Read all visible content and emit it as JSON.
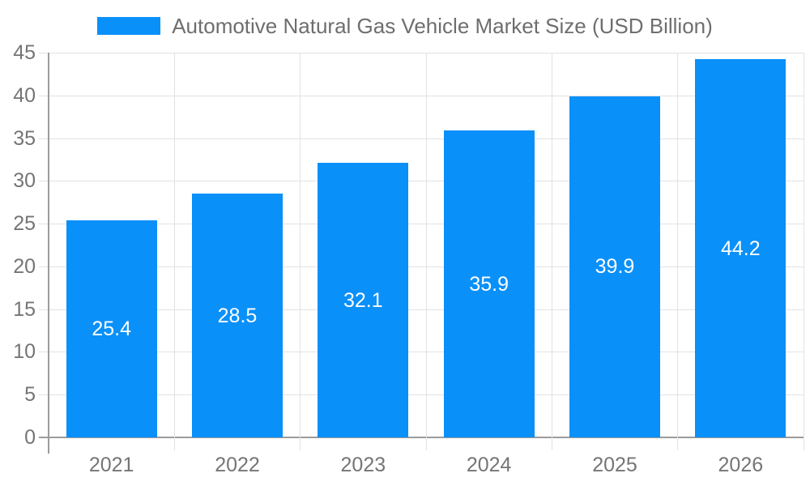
{
  "legend": {
    "label": "Automotive Natural Gas Vehicle Market Size (USD Billion)"
  },
  "chart_data": {
    "type": "bar",
    "categories": [
      "2021",
      "2022",
      "2023",
      "2024",
      "2025",
      "2026"
    ],
    "values": [
      25.4,
      28.5,
      32.1,
      35.9,
      39.9,
      44.2
    ],
    "value_labels": [
      "25.4",
      "28.5",
      "32.1",
      "35.9",
      "39.9",
      "44.2"
    ],
    "title": "Automotive Natural Gas Vehicle Market Size (USD Billion)",
    "xlabel": "",
    "ylabel": "",
    "ylim": [
      0,
      45
    ],
    "ytick_step": 5,
    "ytick_labels": [
      "0",
      "5",
      "10",
      "15",
      "20",
      "25",
      "30",
      "35",
      "40",
      "45"
    ],
    "grid": true,
    "legend_position": "top",
    "value_label_position": "inside-center",
    "colors": {
      "bar": "#0A90F9",
      "value_label": "#ffffff",
      "axis_text": "#757575",
      "legend_text": "#6e6e6e",
      "gridline": "#e2e2e2",
      "axis_line": "#9c9c9c",
      "background": "#ffffff"
    }
  }
}
